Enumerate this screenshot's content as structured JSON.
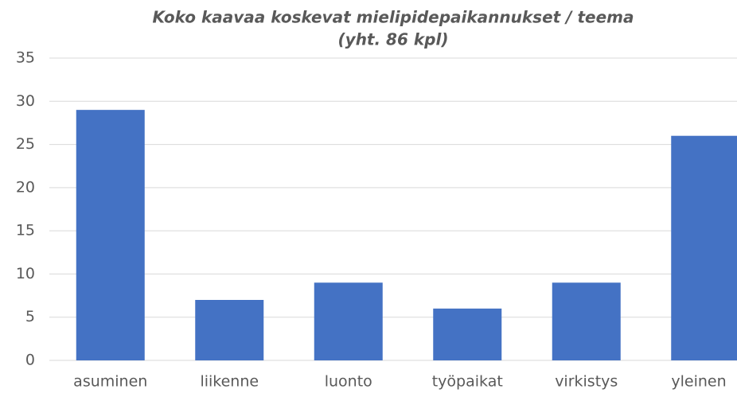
{
  "chart_data": {
    "type": "bar",
    "title": [
      "Koko kaavaa koskevat mielipidepaikannukset  / teema",
      "(yht. 86 kpl)"
    ],
    "categories": [
      "asuminen",
      "liikenne",
      "luonto",
      "työpaikat",
      "virkistys",
      "yleinen"
    ],
    "values": [
      29,
      7,
      9,
      6,
      9,
      26
    ],
    "color": "#4472c4",
    "ylim": [
      0,
      35
    ],
    "yticks": [
      0,
      5,
      10,
      15,
      20,
      25,
      30,
      35
    ],
    "grid": true
  }
}
